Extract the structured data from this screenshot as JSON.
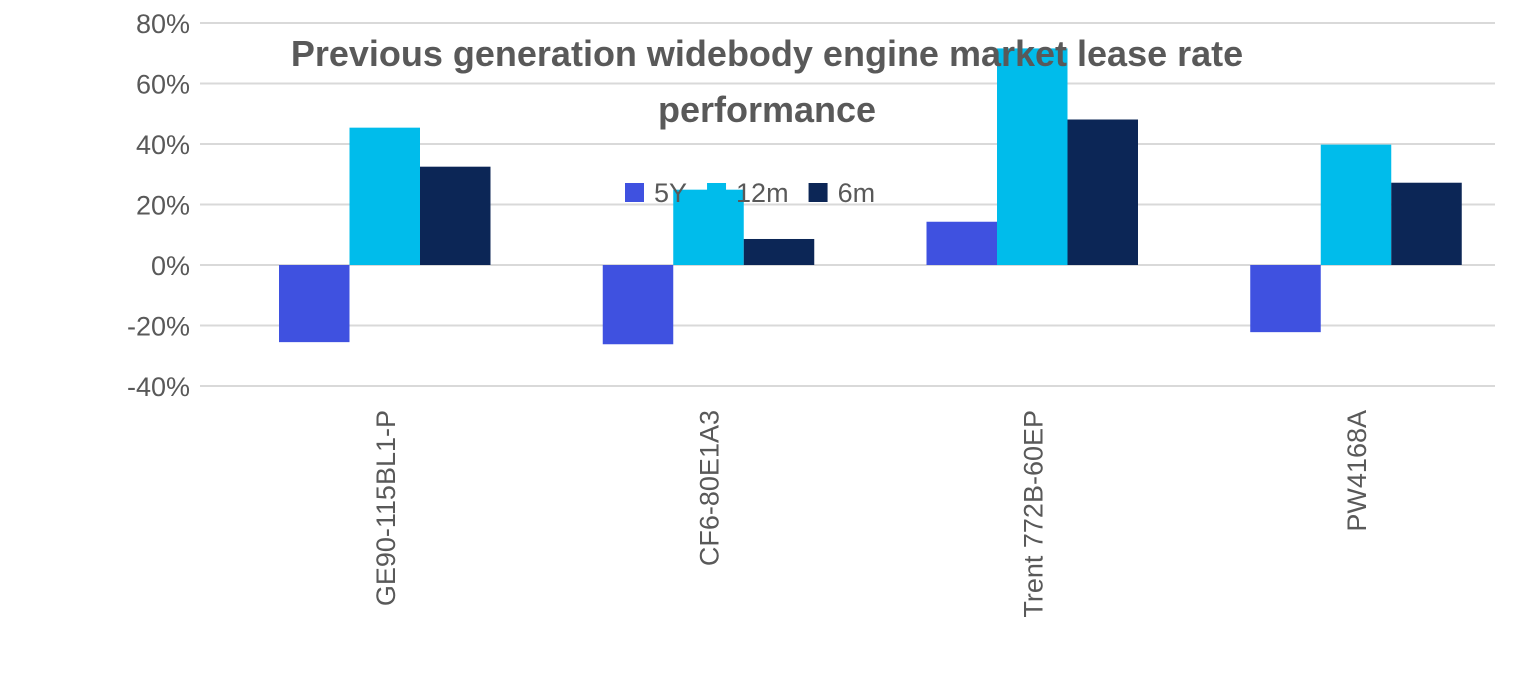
{
  "chart_data": {
    "type": "bar",
    "title": "Previous generation widebody engine market lease rate performance",
    "title_lines": [
      "Previous generation widebody engine market lease rate",
      "performance"
    ],
    "categories": [
      "GE90-115BL1-P",
      "CF6-80E1A3",
      "Trent 772B-60EP",
      "PW4168A"
    ],
    "series": [
      {
        "name": "5Y",
        "color": "#3f51e0",
        "values": [
          -25.5,
          -26.2,
          14.3,
          -22.2
        ]
      },
      {
        "name": "12m",
        "color": "#00bceb",
        "values": [
          45.4,
          24.9,
          71.6,
          39.8
        ]
      },
      {
        "name": "6m",
        "color": "#0c2656",
        "values": [
          32.5,
          8.6,
          48.1,
          27.2
        ]
      }
    ],
    "ylim": [
      -40,
      80
    ],
    "yticks": [
      80,
      60,
      40,
      20,
      0,
      -20,
      -40
    ],
    "ytick_labels": [
      "80%",
      "60%",
      "40%",
      "20%",
      "0%",
      "-20%",
      "-40%"
    ],
    "grid": true,
    "legend": "top-center",
    "xlabel": "",
    "ylabel": ""
  }
}
